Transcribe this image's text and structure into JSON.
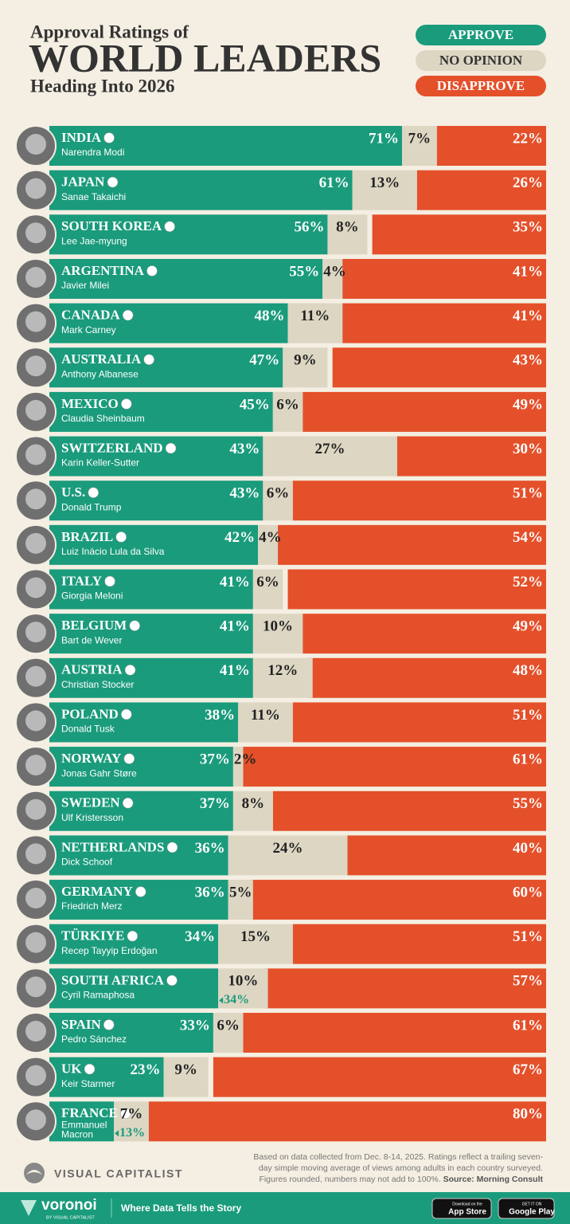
{
  "chart_data": {
    "type": "stacked-bar",
    "title": "WORLD LEADERS",
    "pretitle": "Approval Ratings of",
    "subtitle": "Heading Into 2026",
    "categories": [
      "INDIA",
      "JAPAN",
      "SOUTH KOREA",
      "ARGENTINA",
      "CANADA",
      "AUSTRALIA",
      "MEXICO",
      "SWITZERLAND",
      "U.S.",
      "BRAZIL",
      "ITALY",
      "BELGIUM",
      "AUSTRIA",
      "POLAND",
      "NORWAY",
      "SWEDEN",
      "NETHERLANDS",
      "GERMANY",
      "TÜRKIYE",
      "SOUTH AFRICA",
      "SPAIN",
      "UK",
      "FRANCE"
    ],
    "leaders": [
      "Narendra Modi",
      "Sanae Takaichi",
      "Lee Jae-myung",
      "Javier Milei",
      "Mark Carney",
      "Anthony Albanese",
      "Claudia Sheinbaum",
      "Karin Keller-Sutter",
      "Donald Trump",
      "Luiz Inácio Lula da Silva",
      "Giorgia Meloni",
      "Bart de Wever",
      "Christian Stocker",
      "Donald Tusk",
      "Jonas Gahr Støre",
      "Ulf Kristersson",
      "Dick Schoof",
      "Friedrich Merz",
      "Recep Tayyip Erdoğan",
      "Cyril Ramaphosa",
      "Pedro Sánchez",
      "Keir Starmer",
      "Emmanuel Macron"
    ],
    "xlim": [
      0,
      100
    ],
    "series": [
      {
        "name": "APPROVE",
        "color": "#1a9b7c",
        "values": [
          71,
          61,
          56,
          55,
          48,
          47,
          45,
          43,
          43,
          42,
          41,
          41,
          41,
          38,
          37,
          37,
          36,
          36,
          34,
          34,
          33,
          23,
          13
        ],
        "value_labels": [
          "71%",
          "61%",
          "56%",
          "55%",
          "48%",
          "47%",
          "45%",
          "43%",
          "43%",
          "42%",
          "41%",
          "41%",
          "41%",
          "38%",
          "37%",
          "37%",
          "36%",
          "36%",
          "34%",
          "34%",
          "33%",
          "23%",
          "13%"
        ]
      },
      {
        "name": "NO OPINION",
        "color": "#ddd6c3",
        "values": [
          7,
          13,
          8,
          4,
          11,
          9,
          6,
          27,
          6,
          4,
          6,
          10,
          12,
          11,
          2,
          8,
          24,
          5,
          15,
          10,
          6,
          9,
          7
        ],
        "value_labels": [
          "7%",
          "13%",
          "8%",
          "4%",
          "11%",
          "9%",
          "6%",
          "27%",
          "6%",
          "4%",
          "6%",
          "10%",
          "12%",
          "11%",
          "2%",
          "8%",
          "24%",
          "5%",
          "15%",
          "10%",
          "6%",
          "9%",
          "7%"
        ]
      },
      {
        "name": "DISAPPROVE",
        "color": "#e4502a",
        "values": [
          22,
          26,
          35,
          41,
          41,
          43,
          49,
          30,
          51,
          54,
          52,
          49,
          48,
          51,
          61,
          55,
          40,
          60,
          51,
          57,
          61,
          67,
          80
        ],
        "value_labels": [
          "22%",
          "26%",
          "35%",
          "41%",
          "41%",
          "43%",
          "49%",
          "30%",
          "51%",
          "54%",
          "52%",
          "49%",
          "48%",
          "51%",
          "61%",
          "55%",
          "40%",
          "60%",
          "51%",
          "57%",
          "61%",
          "67%",
          "80%"
        ]
      }
    ],
    "note": [
      "Based on data collected from Dec. 8-14, 2025. Ratings reflect a trailing seven-",
      "day simple moving average of views among adults in each country surveyed.",
      "Figures rounded, numbers may not add to 100%."
    ],
    "source": "Source: Morning Consult"
  },
  "footer": {
    "brand": "VISUAL CAPITALIST",
    "logo": "voronoi",
    "logo_sub": "BY VISUAL CAPITALIST",
    "tagline": "Where Data Tells the Story",
    "app_store_small": "Download on the",
    "app_store": "App Store",
    "play_small": "GET IT ON",
    "play": "Google Play"
  }
}
